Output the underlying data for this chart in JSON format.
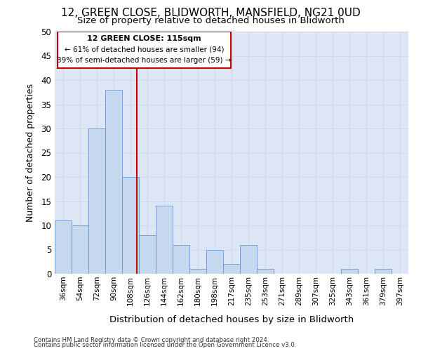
{
  "title_line1": "12, GREEN CLOSE, BLIDWORTH, MANSFIELD, NG21 0UD",
  "title_line2": "Size of property relative to detached houses in Blidworth",
  "xlabel": "Distribution of detached houses by size in Blidworth",
  "ylabel": "Number of detached properties",
  "footnote1": "Contains HM Land Registry data © Crown copyright and database right 2024.",
  "footnote2": "Contains public sector information licensed under the Open Government Licence v3.0.",
  "annotation_line1": "12 GREEN CLOSE: 115sqm",
  "annotation_line2": "← 61% of detached houses are smaller (94)",
  "annotation_line3": "39% of semi-detached houses are larger (59) →",
  "bar_color": "#c5d8ef",
  "bar_edge_color": "#6699cc",
  "vline_color": "#cc0000",
  "vline_x": 115,
  "annotation_box_edgecolor": "#cc0000",
  "annotation_box_facecolor": "#ffffff",
  "grid_color": "#d0d8e8",
  "plot_bg_color": "#dce6f5",
  "fig_bg_color": "#ffffff",
  "categories": [
    "36sqm",
    "54sqm",
    "72sqm",
    "90sqm",
    "108sqm",
    "126sqm",
    "144sqm",
    "162sqm",
    "180sqm",
    "198sqm",
    "217sqm",
    "235sqm",
    "253sqm",
    "271sqm",
    "289sqm",
    "307sqm",
    "325sqm",
    "343sqm",
    "361sqm",
    "379sqm",
    "397sqm"
  ],
  "bin_left_edges": [
    27,
    45,
    63,
    81,
    99,
    117,
    135,
    153,
    171,
    189,
    207,
    225,
    243,
    261,
    279,
    297,
    315,
    333,
    351,
    369,
    387
  ],
  "bin_width": 18,
  "values": [
    11,
    10,
    30,
    38,
    20,
    8,
    14,
    6,
    1,
    5,
    2,
    6,
    1,
    0,
    0,
    0,
    0,
    1,
    0,
    1,
    0
  ],
  "xlim": [
    27,
    405
  ],
  "ylim": [
    0,
    50
  ],
  "yticks": [
    0,
    5,
    10,
    15,
    20,
    25,
    30,
    35,
    40,
    45,
    50
  ]
}
